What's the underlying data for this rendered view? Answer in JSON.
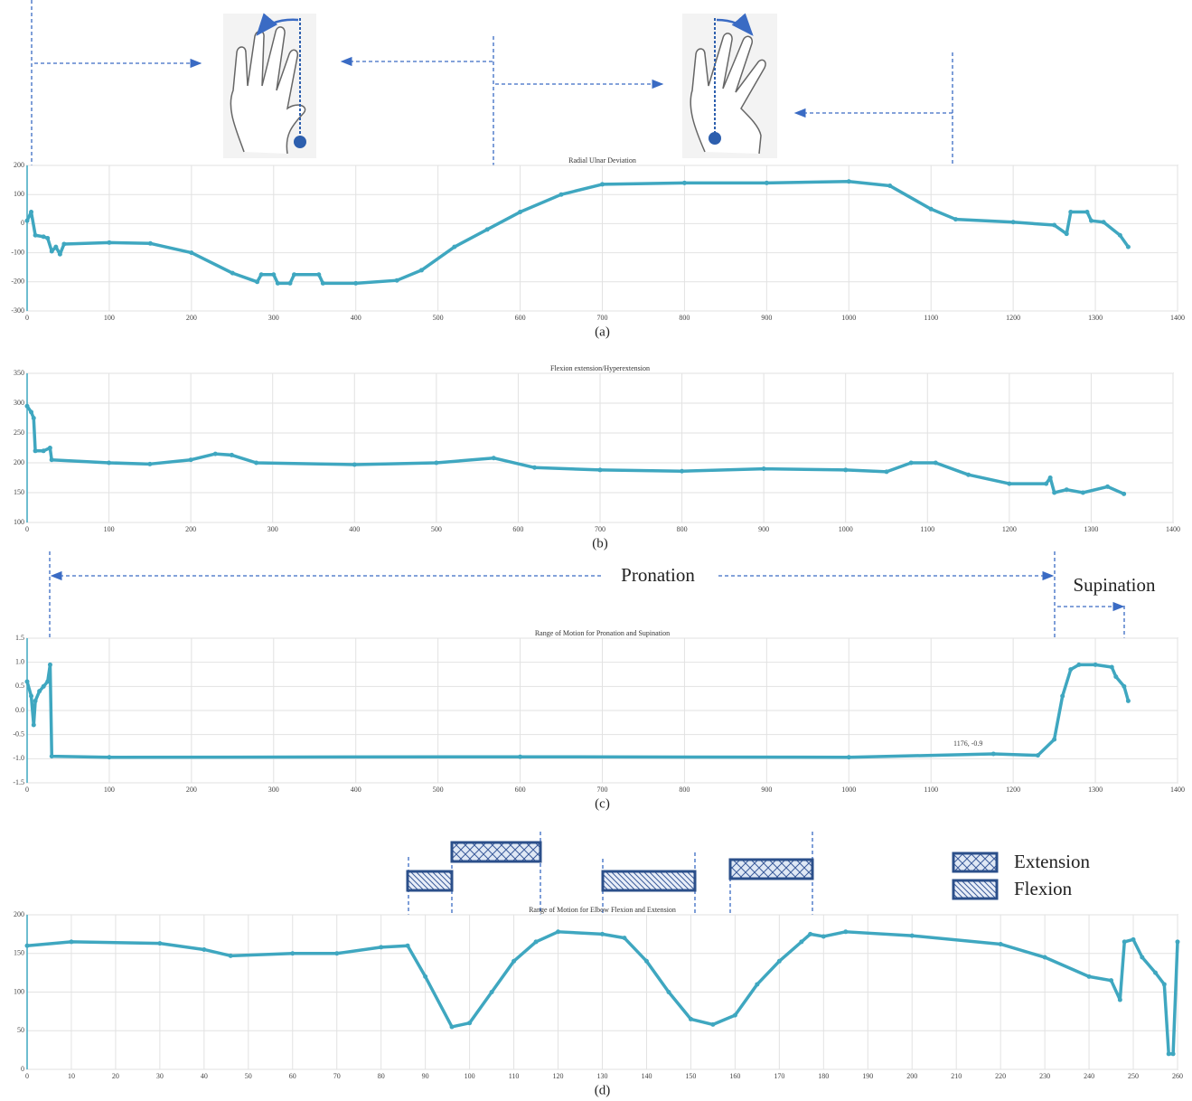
{
  "chart_data": [
    {
      "type": "line",
      "title": "Radial Ulnar Deviation",
      "caption": "(a)",
      "color": "#3fa7c0",
      "x": [
        0,
        5,
        10,
        20,
        25,
        30,
        35,
        40,
        45,
        100,
        150,
        200,
        250,
        280,
        285,
        300,
        305,
        320,
        325,
        355,
        360,
        400,
        450,
        480,
        520,
        560,
        600,
        650,
        700,
        800,
        900,
        1000,
        1050,
        1100,
        1130,
        1200,
        1250,
        1265,
        1270,
        1290,
        1295,
        1310,
        1330,
        1340
      ],
      "values": [
        10,
        40,
        -40,
        -45,
        -50,
        -95,
        -80,
        -105,
        -70,
        -65,
        -68,
        -100,
        -170,
        -200,
        -175,
        -175,
        -205,
        -205,
        -175,
        -175,
        -205,
        -205,
        -195,
        -160,
        -80,
        -20,
        40,
        100,
        135,
        140,
        140,
        145,
        130,
        50,
        15,
        5,
        -5,
        -35,
        40,
        40,
        10,
        5,
        -40,
        -80
      ],
      "xlim": [
        0,
        1400
      ],
      "xticks": [
        0,
        100,
        200,
        300,
        400,
        500,
        600,
        700,
        800,
        900,
        1000,
        1100,
        1200,
        1300,
        1400
      ],
      "ylim": [
        -300,
        200
      ],
      "yticks": [
        -300,
        -200,
        -100,
        0,
        100,
        200
      ],
      "grid": true
    },
    {
      "type": "line",
      "title": "Flexion extension/Hyperextension",
      "caption": "(b)",
      "color": "#3fa7c0",
      "x": [
        0,
        5,
        8,
        10,
        20,
        28,
        30,
        100,
        150,
        200,
        230,
        250,
        280,
        400,
        500,
        570,
        620,
        700,
        800,
        900,
        1000,
        1050,
        1080,
        1110,
        1150,
        1200,
        1245,
        1250,
        1255,
        1270,
        1290,
        1320,
        1340
      ],
      "values": [
        295,
        285,
        275,
        220,
        220,
        225,
        205,
        200,
        198,
        205,
        215,
        213,
        200,
        197,
        200,
        208,
        192,
        188,
        186,
        190,
        188,
        185,
        200,
        200,
        180,
        165,
        165,
        175,
        150,
        155,
        150,
        160,
        148
      ],
      "xlim": [
        0,
        1400
      ],
      "xticks": [
        0,
        100,
        200,
        300,
        400,
        500,
        600,
        700,
        800,
        900,
        1000,
        1100,
        1200,
        1300,
        1400
      ],
      "ylim": [
        100,
        350
      ],
      "yticks": [
        100,
        150,
        200,
        250,
        300,
        350
      ],
      "grid": true
    },
    {
      "type": "line",
      "title": "Range of Motion for Pronation and Supination",
      "caption": "(c)",
      "color": "#3fa7c0",
      "x": [
        0,
        5,
        8,
        10,
        15,
        20,
        25,
        28,
        30,
        100,
        600,
        1000,
        1176,
        1230,
        1250,
        1260,
        1270,
        1280,
        1300,
        1320,
        1325,
        1335,
        1340
      ],
      "values": [
        0.6,
        0.3,
        -0.3,
        0.2,
        0.4,
        0.5,
        0.6,
        0.95,
        -0.95,
        -0.97,
        -0.96,
        -0.97,
        -0.9,
        -0.93,
        -0.6,
        0.3,
        0.85,
        0.95,
        0.95,
        0.9,
        0.7,
        0.5,
        0.2
      ],
      "xlim": [
        0,
        1400
      ],
      "xticks": [
        0,
        100,
        200,
        300,
        400,
        500,
        600,
        700,
        800,
        900,
        1000,
        1100,
        1200,
        1300,
        1400
      ],
      "ylim": [
        -1.5,
        1.5
      ],
      "yticks": [
        -1.5,
        {
          "value": -1,
          "label": "-1.0"
        },
        -0.5,
        {
          "value": 0,
          "label": "0.0"
        },
        0.5,
        {
          "value": 1,
          "label": "1.0"
        },
        1.5
      ],
      "grid": true,
      "annotations": [
        "1176, -0.9",
        "Pronation",
        "Supination"
      ]
    },
    {
      "type": "line",
      "title": "Range of Motion for Elbow Flexion and Extension",
      "caption": "(d)",
      "color": "#3fa7c0",
      "x": [
        0,
        10,
        30,
        40,
        46,
        60,
        70,
        80,
        86,
        90,
        96,
        100,
        105,
        110,
        115,
        120,
        130,
        135,
        140,
        145,
        150,
        155,
        160,
        165,
        170,
        175,
        177,
        180,
        185,
        200,
        220,
        230,
        240,
        245,
        247,
        248,
        250,
        252,
        255,
        257,
        258,
        259,
        260
      ],
      "values": [
        160,
        165,
        163,
        155,
        147,
        150,
        150,
        158,
        160,
        120,
        55,
        60,
        100,
        140,
        165,
        178,
        175,
        170,
        140,
        100,
        65,
        58,
        70,
        110,
        140,
        165,
        175,
        172,
        178,
        173,
        162,
        145,
        120,
        115,
        90,
        165,
        168,
        145,
        125,
        110,
        20,
        20,
        165
      ],
      "xlim": [
        0,
        260
      ],
      "xticks": [
        0,
        10,
        20,
        30,
        40,
        50,
        60,
        70,
        80,
        90,
        100,
        110,
        120,
        130,
        140,
        150,
        160,
        170,
        180,
        190,
        200,
        210,
        220,
        230,
        240,
        250,
        260
      ],
      "ylim": [
        0,
        200
      ],
      "yticks": [
        0,
        50,
        100,
        150,
        200
      ],
      "grid": true,
      "legend_entries": [
        "Extension",
        "Flexion"
      ]
    }
  ]
}
